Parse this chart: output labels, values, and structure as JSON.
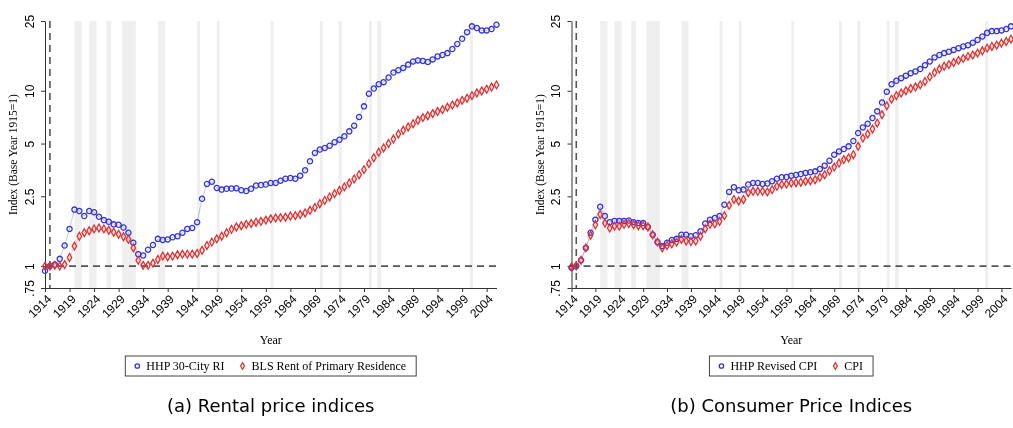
{
  "chart_data": [
    {
      "type": "line",
      "title": "(a) Rental price indices",
      "xlabel": "Year",
      "ylabel": "Index (Base Year 1915=1)",
      "log": "y",
      "legend": "bottom",
      "grid": false,
      "xlim": [
        1914,
        2006
      ],
      "xticks": [
        1914,
        1919,
        1924,
        1929,
        1934,
        1939,
        1944,
        1949,
        1954,
        1959,
        1964,
        1969,
        1974,
        1979,
        1984,
        1989,
        1994,
        1999,
        2004
      ],
      "ylim": [
        0.75,
        25
      ],
      "yticks": [
        {
          "value": 0.75,
          "label": ".75"
        },
        1,
        2.5,
        5,
        10,
        25
      ],
      "x": [
        1914,
        1915,
        1916,
        1917,
        1918,
        1919,
        1920,
        1921,
        1922,
        1923,
        1924,
        1925,
        1926,
        1927,
        1928,
        1929,
        1930,
        1931,
        1932,
        1933,
        1934,
        1935,
        1936,
        1937,
        1938,
        1939,
        1940,
        1941,
        1942,
        1943,
        1944,
        1945,
        1946,
        1947,
        1948,
        1949,
        1950,
        1951,
        1952,
        1953,
        1954,
        1955,
        1956,
        1957,
        1958,
        1959,
        1960,
        1961,
        1962,
        1963,
        1964,
        1965,
        1966,
        1967,
        1968,
        1969,
        1970,
        1971,
        1972,
        1973,
        1974,
        1975,
        1976,
        1977,
        1978,
        1979,
        1980,
        1981,
        1982,
        1983,
        1984,
        1985,
        1986,
        1987,
        1988,
        1989,
        1990,
        1991,
        1992,
        1993,
        1994,
        1995,
        1996,
        1997,
        1998,
        1999,
        2000,
        2001,
        2002,
        2003,
        2004,
        2005,
        2006
      ],
      "ref_lines": [
        {
          "axis": "x",
          "value": 1915,
          "color": "#555555",
          "line_style": "dashed"
        },
        {
          "axis": "y",
          "value": 1,
          "color": "#555555",
          "line_style": "dashed"
        }
      ],
      "bands": [
        {
          "axis": "x",
          "from": 1920,
          "to": 1921.5,
          "color": "#efefef"
        },
        {
          "axis": "x",
          "from": 1923,
          "to": 1924.5,
          "color": "#efefef"
        },
        {
          "axis": "x",
          "from": 1926.5,
          "to": 1927.5,
          "color": "#efefef"
        },
        {
          "axis": "x",
          "from": 1929.7,
          "to": 1932.5,
          "color": "#efefef"
        },
        {
          "axis": "x",
          "from": 1937,
          "to": 1938.5,
          "color": "#efefef"
        },
        {
          "axis": "x",
          "from": 1945,
          "to": 1945.6,
          "color": "#efefef"
        },
        {
          "axis": "x",
          "from": 1949,
          "to": 1949.6,
          "color": "#efefef"
        },
        {
          "axis": "x",
          "from": 1960,
          "to": 1960.6,
          "color": "#efefef"
        },
        {
          "axis": "x",
          "from": 1970,
          "to": 1970.6,
          "color": "#efefef"
        },
        {
          "axis": "x",
          "from": 1973.8,
          "to": 1974.5,
          "color": "#efefef"
        },
        {
          "axis": "x",
          "from": 1980,
          "to": 1980.6,
          "color": "#efefef"
        },
        {
          "axis": "x",
          "from": 1981.7,
          "to": 1982.5,
          "color": "#efefef"
        },
        {
          "axis": "x",
          "from": 2000.6,
          "to": 2001.2,
          "color": "#efefef"
        }
      ],
      "series": [
        {
          "name": "HHP 30-City RI",
          "color": "#3333dd",
          "marker": "circle",
          "values": [
            0.94,
            1.0,
            1.02,
            1.1,
            1.31,
            1.63,
            2.1,
            2.06,
            1.93,
            2.06,
            2.03,
            1.91,
            1.83,
            1.79,
            1.73,
            1.72,
            1.66,
            1.55,
            1.36,
            1.17,
            1.15,
            1.24,
            1.32,
            1.43,
            1.41,
            1.42,
            1.46,
            1.48,
            1.55,
            1.63,
            1.65,
            1.78,
            2.42,
            2.94,
            3.03,
            2.79,
            2.73,
            2.76,
            2.77,
            2.78,
            2.71,
            2.68,
            2.76,
            2.88,
            2.9,
            2.92,
            2.98,
            2.98,
            3.07,
            3.15,
            3.18,
            3.15,
            3.28,
            3.52,
            3.96,
            4.42,
            4.62,
            4.72,
            4.86,
            5.09,
            5.26,
            5.5,
            5.87,
            6.32,
            7.09,
            8.15,
            9.62,
            10.3,
            10.9,
            11.2,
            11.9,
            12.7,
            13.1,
            13.5,
            14.1,
            14.7,
            14.9,
            14.8,
            14.6,
            15.1,
            15.7,
            16.0,
            16.4,
            17.3,
            18.5,
            19.8,
            21.6,
            23.3,
            22.8,
            22.1,
            22.1,
            22.5,
            23.8
          ]
        },
        {
          "name": "BLS Rent of Primary Residence",
          "color": "#e03030",
          "marker": "diamond",
          "values": [
            1.0,
            1.0,
            1.01,
            1.0,
            1.02,
            1.12,
            1.3,
            1.48,
            1.55,
            1.59,
            1.63,
            1.65,
            1.63,
            1.6,
            1.56,
            1.52,
            1.47,
            1.42,
            1.27,
            1.08,
            1.01,
            1.01,
            1.04,
            1.09,
            1.14,
            1.13,
            1.14,
            1.16,
            1.17,
            1.17,
            1.17,
            1.18,
            1.23,
            1.31,
            1.37,
            1.43,
            1.48,
            1.55,
            1.62,
            1.67,
            1.7,
            1.73,
            1.75,
            1.78,
            1.8,
            1.83,
            1.86,
            1.88,
            1.89,
            1.9,
            1.93,
            1.94,
            1.97,
            2.01,
            2.08,
            2.16,
            2.27,
            2.37,
            2.48,
            2.59,
            2.7,
            2.83,
            2.98,
            3.14,
            3.32,
            3.55,
            3.84,
            4.15,
            4.46,
            4.72,
            5.0,
            5.31,
            5.67,
            5.95,
            6.21,
            6.49,
            6.79,
            7.03,
            7.21,
            7.41,
            7.61,
            7.81,
            8.05,
            8.29,
            8.52,
            8.81,
            9.06,
            9.38,
            9.71,
            9.97,
            10.2,
            10.5,
            10.8
          ]
        }
      ]
    },
    {
      "type": "line",
      "title": "(b) Consumer Price Indices",
      "xlabel": "Year",
      "ylabel": "Index (Base Year 1915=1)",
      "log": "y",
      "legend": "bottom",
      "grid": false,
      "xlim": [
        1914,
        2006
      ],
      "xticks": [
        1914,
        1919,
        1924,
        1929,
        1934,
        1939,
        1944,
        1949,
        1954,
        1959,
        1964,
        1969,
        1974,
        1979,
        1984,
        1989,
        1994,
        1999,
        2004
      ],
      "ylim": [
        0.75,
        25
      ],
      "yticks": [
        {
          "value": 0.75,
          "label": ".75"
        },
        1,
        2.5,
        5,
        10,
        25
      ],
      "x": [
        1914,
        1915,
        1916,
        1917,
        1918,
        1919,
        1920,
        1921,
        1922,
        1923,
        1924,
        1925,
        1926,
        1927,
        1928,
        1929,
        1930,
        1931,
        1932,
        1933,
        1934,
        1935,
        1936,
        1937,
        1938,
        1939,
        1940,
        1941,
        1942,
        1943,
        1944,
        1945,
        1946,
        1947,
        1948,
        1949,
        1950,
        1951,
        1952,
        1953,
        1954,
        1955,
        1956,
        1957,
        1958,
        1959,
        1960,
        1961,
        1962,
        1963,
        1964,
        1965,
        1966,
        1967,
        1968,
        1969,
        1970,
        1971,
        1972,
        1973,
        1974,
        1975,
        1976,
        1977,
        1978,
        1979,
        1980,
        1981,
        1982,
        1983,
        1984,
        1985,
        1986,
        1987,
        1988,
        1989,
        1990,
        1991,
        1992,
        1993,
        1994,
        1995,
        1996,
        1997,
        1998,
        1999,
        2000,
        2001,
        2002,
        2003,
        2004,
        2005,
        2006
      ],
      "ref_lines": [
        {
          "axis": "x",
          "value": 1915,
          "color": "#555555",
          "line_style": "dashed"
        },
        {
          "axis": "y",
          "value": 1,
          "color": "#555555",
          "line_style": "dashed"
        }
      ],
      "bands": [
        {
          "axis": "x",
          "from": 1920,
          "to": 1921.5,
          "color": "#efefef"
        },
        {
          "axis": "x",
          "from": 1923,
          "to": 1924.5,
          "color": "#efefef"
        },
        {
          "axis": "x",
          "from": 1926.5,
          "to": 1927.5,
          "color": "#efefef"
        },
        {
          "axis": "x",
          "from": 1929.7,
          "to": 1932.5,
          "color": "#efefef"
        },
        {
          "axis": "x",
          "from": 1937,
          "to": 1938.5,
          "color": "#efefef"
        },
        {
          "axis": "x",
          "from": 1945,
          "to": 1945.6,
          "color": "#efefef"
        },
        {
          "axis": "x",
          "from": 1949,
          "to": 1949.6,
          "color": "#efefef"
        },
        {
          "axis": "x",
          "from": 1960,
          "to": 1960.6,
          "color": "#efefef"
        },
        {
          "axis": "x",
          "from": 1970,
          "to": 1970.6,
          "color": "#efefef"
        },
        {
          "axis": "x",
          "from": 1973.8,
          "to": 1974.5,
          "color": "#efefef"
        },
        {
          "axis": "x",
          "from": 1980,
          "to": 1980.6,
          "color": "#efefef"
        },
        {
          "axis": "x",
          "from": 1981.7,
          "to": 1982.5,
          "color": "#efefef"
        },
        {
          "axis": "x",
          "from": 2000.6,
          "to": 2001.2,
          "color": "#efefef"
        }
      ],
      "series": [
        {
          "name": "HHP Revised CPI",
          "color": "#3333dd",
          "marker": "circle",
          "values": [
            0.98,
            1.0,
            1.08,
            1.27,
            1.55,
            1.84,
            2.18,
            1.93,
            1.78,
            1.81,
            1.81,
            1.81,
            1.82,
            1.78,
            1.76,
            1.76,
            1.67,
            1.51,
            1.37,
            1.3,
            1.36,
            1.41,
            1.43,
            1.51,
            1.51,
            1.48,
            1.5,
            1.58,
            1.75,
            1.84,
            1.88,
            1.93,
            2.24,
            2.65,
            2.82,
            2.71,
            2.73,
            2.92,
            2.98,
            2.98,
            2.94,
            2.96,
            3.05,
            3.15,
            3.21,
            3.22,
            3.28,
            3.31,
            3.35,
            3.4,
            3.43,
            3.47,
            3.58,
            3.74,
            3.99,
            4.32,
            4.51,
            4.65,
            4.82,
            5.17,
            5.74,
            6.18,
            6.49,
            6.99,
            7.63,
            8.57,
            9.88,
            10.9,
            11.4,
            11.8,
            12.2,
            12.6,
            12.9,
            13.3,
            14.0,
            14.7,
            15.5,
            16.0,
            16.4,
            16.7,
            17.1,
            17.5,
            17.9,
            18.2,
            18.8,
            19.5,
            20.4,
            21.4,
            21.9,
            21.9,
            22.1,
            22.5,
            23.3
          ]
        },
        {
          "name": "CPI",
          "color": "#e03030",
          "marker": "diamond",
          "values": [
            0.99,
            1.0,
            1.08,
            1.27,
            1.5,
            1.72,
            1.97,
            1.76,
            1.65,
            1.69,
            1.69,
            1.73,
            1.75,
            1.72,
            1.7,
            1.7,
            1.67,
            1.51,
            1.37,
            1.27,
            1.31,
            1.34,
            1.37,
            1.42,
            1.39,
            1.38,
            1.39,
            1.48,
            1.63,
            1.73,
            1.74,
            1.8,
            1.94,
            2.22,
            2.4,
            2.35,
            2.4,
            2.62,
            2.67,
            2.67,
            2.67,
            2.65,
            2.73,
            2.85,
            2.92,
            2.94,
            2.98,
            2.99,
            3.01,
            3.05,
            3.07,
            3.11,
            3.21,
            3.32,
            3.5,
            3.67,
            3.87,
            4.05,
            4.14,
            4.32,
            4.82,
            5.37,
            5.67,
            6.05,
            6.54,
            7.3,
            8.21,
            8.96,
            9.38,
            9.71,
            10.0,
            10.3,
            10.5,
            10.8,
            11.3,
            12.0,
            12.7,
            13.3,
            13.8,
            14.1,
            14.5,
            14.9,
            15.3,
            15.7,
            16.0,
            16.4,
            16.9,
            17.5,
            17.9,
            18.2,
            18.7,
            19.1,
            19.7
          ]
        }
      ]
    }
  ]
}
